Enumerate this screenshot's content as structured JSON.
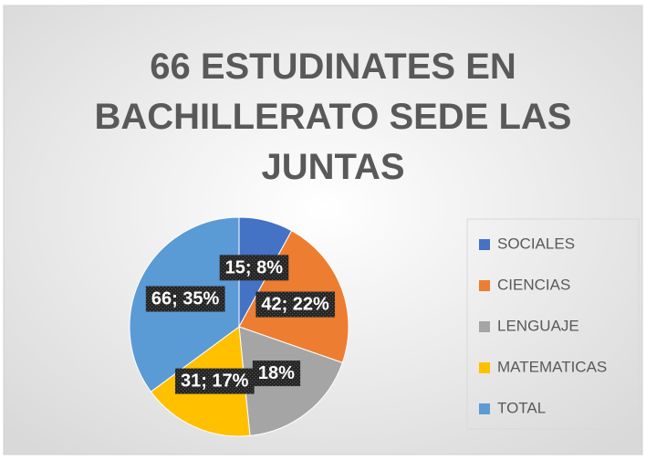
{
  "chart_data": {
    "type": "pie",
    "title": "66 ESTUDINATES EN BACHILLERATO SEDE LAS JUNTAS",
    "categories": [
      "SOCIALES",
      "CIENCIAS",
      "LENGUAJE",
      "MATEMATICAS",
      "TOTAL"
    ],
    "values": [
      15,
      42,
      34,
      31,
      66
    ],
    "value_labels": [
      "15; 8%",
      "42; 22%",
      "18%",
      "31; 17%",
      "66; 35%"
    ],
    "colors": [
      "#4472c4",
      "#ed7d31",
      "#a5a5a5",
      "#ffc000",
      "#5b9bd5"
    ],
    "legend": "right"
  }
}
